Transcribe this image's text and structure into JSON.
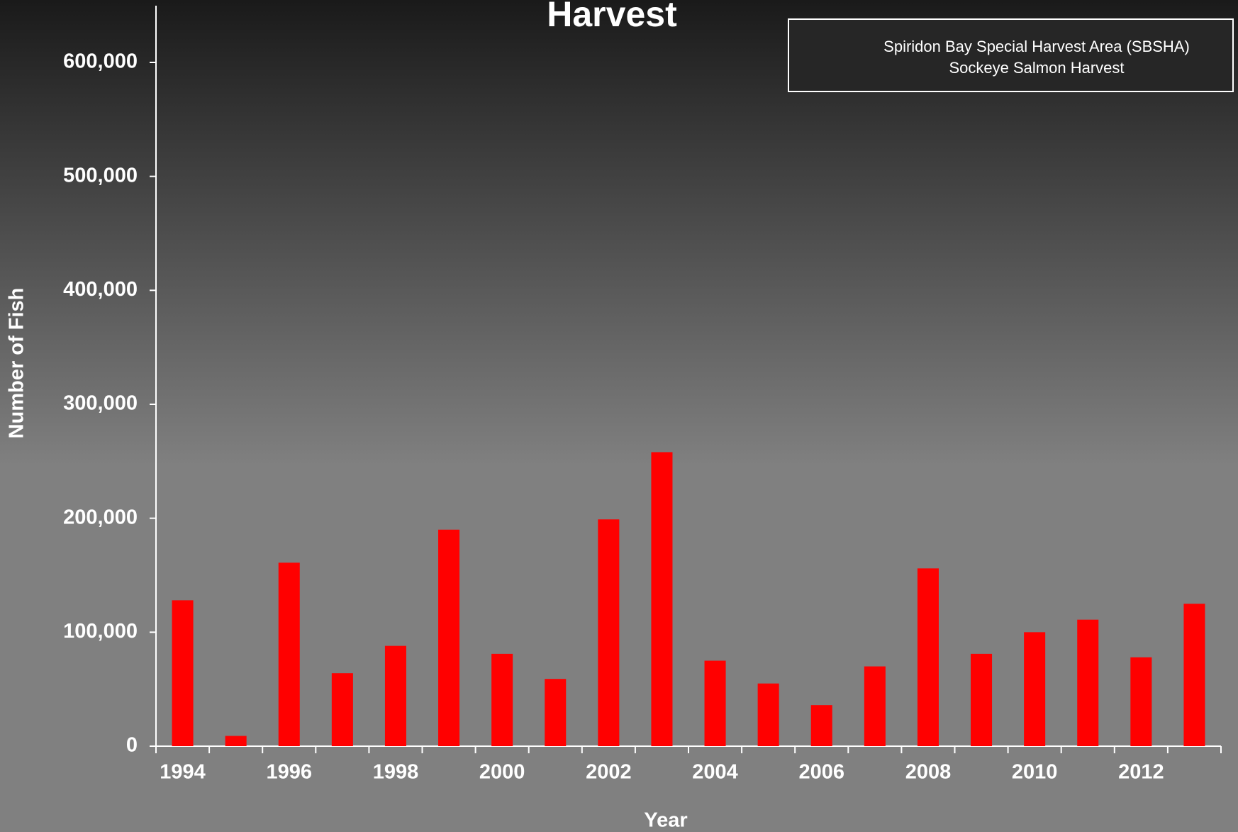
{
  "chart_data": {
    "type": "bar",
    "title": "Harvest",
    "x_label": "Year",
    "y_label": "Number of Fish",
    "categories": [
      "1994",
      null,
      "1996",
      null,
      "1998",
      null,
      "2000",
      null,
      "2002",
      null,
      "2004",
      null,
      "2006",
      null,
      "2008",
      null,
      "2010",
      null,
      "2012",
      null
    ],
    "series": [
      {
        "name": "Spiridon Bay Special Harvest Area (SBSHA) Sockeye Salmon Harvest",
        "color": "#ff0000",
        "values": [
          128000,
          9000,
          161000,
          64000,
          88000,
          190000,
          81000,
          59000,
          199000,
          258000,
          75000,
          55000,
          36000,
          70000,
          156000,
          81000,
          100000,
          111000,
          78000,
          125000
        ]
      }
    ],
    "ylim": [
      0,
      600000
    ],
    "yticks": [
      0,
      {
        "value": 100000,
        "label": "100,000"
      },
      {
        "value": 200000,
        "label": "200,000"
      },
      {
        "value": 300000,
        "label": "300,000"
      },
      {
        "value": 400000,
        "label": "400,000"
      },
      {
        "value": 500000,
        "label": "500,000"
      },
      {
        "value": 600000,
        "label": "600,000"
      }
    ],
    "grid": false,
    "legend": "upper right"
  }
}
